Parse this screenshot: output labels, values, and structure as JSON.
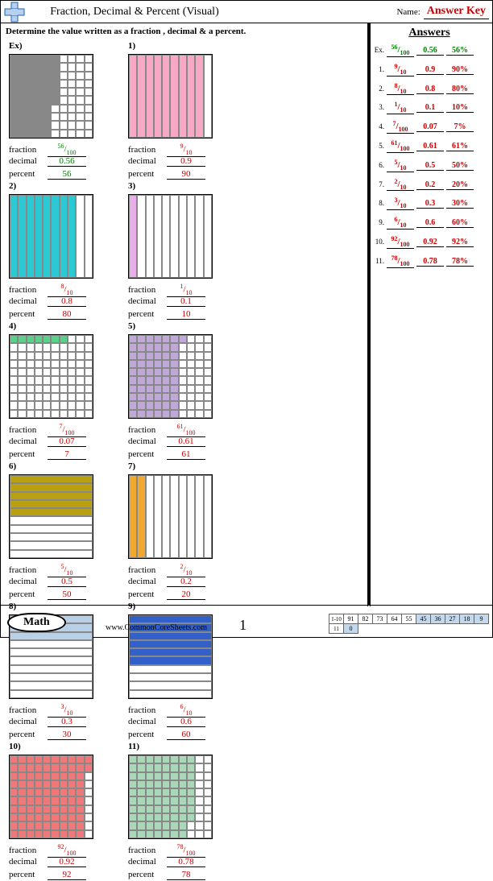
{
  "header": {
    "title": "Fraction, Decimal & Percent (Visual)",
    "name_label": "Name:",
    "name_value": "Answer Key"
  },
  "instruction": "Determine the value written as a fraction , decimal & a percent.",
  "labels": {
    "fraction": "fraction",
    "decimal": "decimal",
    "percent": "percent"
  },
  "answers_title": "Answers",
  "problems": [
    {
      "label": "Ex)",
      "grid": "10x10",
      "orient": "vert",
      "shaded": 56,
      "color": "#888888",
      "frac_num": "56",
      "frac_den": "100",
      "decimal": "0.56",
      "percent": "56",
      "is_example": true
    },
    {
      "label": "1)",
      "grid": "1x10",
      "orient": "vert",
      "shaded": 9,
      "color": "#f7a8c4",
      "frac_num": "9",
      "frac_den": "10",
      "decimal": "0.9",
      "percent": "90",
      "is_example": false
    },
    {
      "label": "2)",
      "grid": "1x10",
      "orient": "vert",
      "shaded": 8,
      "color": "#2cc8d4",
      "frac_num": "8",
      "frac_den": "10",
      "decimal": "0.8",
      "percent": "80",
      "is_example": false
    },
    {
      "label": "3)",
      "grid": "1x10",
      "orient": "vert",
      "shaded": 1,
      "color": "#e8b0e8",
      "frac_num": "1",
      "frac_den": "10",
      "decimal": "0.1",
      "percent": "10",
      "is_example": false
    },
    {
      "label": "4)",
      "grid": "10x10",
      "orient": "horiz",
      "shaded": 7,
      "color": "#5ad088",
      "frac_num": "7",
      "frac_den": "100",
      "decimal": "0.07",
      "percent": "7",
      "is_example": false
    },
    {
      "label": "5)",
      "grid": "10x10",
      "orient": "vert",
      "shaded": 61,
      "color": "#c0a8d8",
      "frac_num": "61",
      "frac_den": "100",
      "decimal": "0.61",
      "percent": "61",
      "is_example": false
    },
    {
      "label": "6)",
      "grid": "10x1",
      "orient": "horiz",
      "shaded": 5,
      "color": "#b8a010",
      "frac_num": "5",
      "frac_den": "10",
      "decimal": "0.5",
      "percent": "50",
      "is_example": false
    },
    {
      "label": "7)",
      "grid": "1x10",
      "orient": "vert",
      "shaded": 2,
      "color": "#f0a830",
      "frac_num": "2",
      "frac_den": "10",
      "decimal": "0.2",
      "percent": "20",
      "is_example": false
    },
    {
      "label": "8)",
      "grid": "10x1",
      "orient": "horiz",
      "shaded": 3,
      "color": "#b8d0e8",
      "frac_num": "3",
      "frac_den": "10",
      "decimal": "0.3",
      "percent": "30",
      "is_example": false
    },
    {
      "label": "9)",
      "grid": "10x1",
      "orient": "horiz",
      "shaded": 6,
      "color": "#3060c8",
      "frac_num": "6",
      "frac_den": "10",
      "decimal": "0.6",
      "percent": "60",
      "is_example": false
    },
    {
      "label": "10)",
      "grid": "10x10",
      "orient": "vert",
      "shaded": 92,
      "color": "#f07878",
      "frac_num": "92",
      "frac_den": "100",
      "decimal": "0.92",
      "percent": "92",
      "is_example": false
    },
    {
      "label": "11)",
      "grid": "10x10",
      "orient": "vert",
      "shaded": 78,
      "color": "#a8d8b8",
      "frac_num": "78",
      "frac_den": "100",
      "decimal": "0.78",
      "percent": "78",
      "is_example": false
    }
  ],
  "answers": [
    {
      "n": "Ex.",
      "frac_num": "56",
      "frac_den": "100",
      "decimal": "0.56",
      "percent": "56%",
      "ex": true
    },
    {
      "n": "1.",
      "frac_num": "9",
      "frac_den": "10",
      "decimal": "0.9",
      "percent": "90%",
      "ex": false
    },
    {
      "n": "2.",
      "frac_num": "8",
      "frac_den": "10",
      "decimal": "0.8",
      "percent": "80%",
      "ex": false
    },
    {
      "n": "3.",
      "frac_num": "1",
      "frac_den": "10",
      "decimal": "0.1",
      "percent": "10%",
      "ex": false
    },
    {
      "n": "4.",
      "frac_num": "7",
      "frac_den": "100",
      "decimal": "0.07",
      "percent": "7%",
      "ex": false
    },
    {
      "n": "5.",
      "frac_num": "61",
      "frac_den": "100",
      "decimal": "0.61",
      "percent": "61%",
      "ex": false
    },
    {
      "n": "6.",
      "frac_num": "5",
      "frac_den": "10",
      "decimal": "0.5",
      "percent": "50%",
      "ex": false
    },
    {
      "n": "7.",
      "frac_num": "2",
      "frac_den": "10",
      "decimal": "0.2",
      "percent": "20%",
      "ex": false
    },
    {
      "n": "8.",
      "frac_num": "3",
      "frac_den": "10",
      "decimal": "0.3",
      "percent": "30%",
      "ex": false
    },
    {
      "n": "9.",
      "frac_num": "6",
      "frac_den": "10",
      "decimal": "0.6",
      "percent": "60%",
      "ex": false
    },
    {
      "n": "10.",
      "frac_num": "92",
      "frac_den": "100",
      "decimal": "0.92",
      "percent": "92%",
      "ex": false
    },
    {
      "n": "11.",
      "frac_num": "78",
      "frac_den": "100",
      "decimal": "0.78",
      "percent": "78%",
      "ex": false
    }
  ],
  "footer": {
    "pill": "Math",
    "url": "www.CommonCoreSheets.com",
    "page": "1",
    "score_rows": [
      {
        "label": "1-10",
        "cells": [
          "91",
          "82",
          "73",
          "64",
          "55",
          "45",
          "36",
          "27",
          "18",
          "9"
        ],
        "colors": [
          "#ffffff",
          "#ffffff",
          "#ffffff",
          "#ffffff",
          "#ffffff",
          "#c0d8f0",
          "#c0d8f0",
          "#c0d8f0",
          "#c0d8f0",
          "#c0d8f0"
        ]
      },
      {
        "label": "11",
        "cells": [
          "0",
          "",
          "",
          "",
          "",
          "",
          "",
          "",
          "",
          ""
        ],
        "colors": [
          "#c0d8f0",
          "",
          "",
          "",
          "",
          "",
          "",
          "",
          "",
          ""
        ]
      }
    ]
  }
}
